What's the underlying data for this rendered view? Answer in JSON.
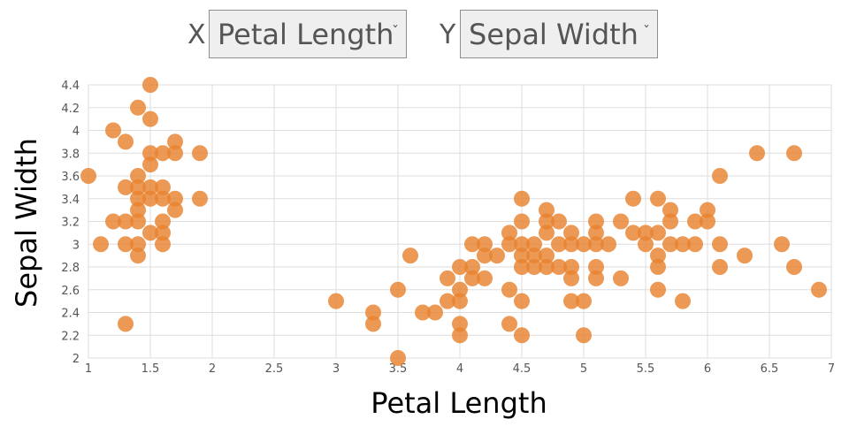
{
  "controls": {
    "x_letter": "X",
    "y_letter": "Y",
    "x_select_value": "Petal Length",
    "y_select_value": "Sepal Width",
    "chevron_icon": "chevron-down-icon"
  },
  "colors": {
    "point": "#e8822f",
    "grid": "#dddddd"
  },
  "chart_data": {
    "type": "scatter",
    "xlabel": "Petal Length",
    "ylabel": "Sepal Width",
    "xlim": [
      1,
      7
    ],
    "ylim": [
      2,
      4.4
    ],
    "xticks": [
      1,
      1.5,
      2,
      2.5,
      3,
      3.5,
      4,
      4.5,
      5,
      5.5,
      6,
      6.5,
      7
    ],
    "yticks": [
      2,
      2.2,
      2.4,
      2.6,
      2.8,
      3,
      3.2,
      3.4,
      3.6,
      3.8,
      4,
      4.2,
      4.4
    ],
    "grid": true,
    "points": [
      [
        1.0,
        3.6
      ],
      [
        1.1,
        3.0
      ],
      [
        1.2,
        4.0
      ],
      [
        1.2,
        3.2
      ],
      [
        1.3,
        3.9
      ],
      [
        1.3,
        3.5
      ],
      [
        1.3,
        3.2
      ],
      [
        1.3,
        3.0
      ],
      [
        1.3,
        2.3
      ],
      [
        1.4,
        4.2
      ],
      [
        1.4,
        3.6
      ],
      [
        1.4,
        3.5
      ],
      [
        1.4,
        3.4
      ],
      [
        1.4,
        3.3
      ],
      [
        1.4,
        3.2
      ],
      [
        1.4,
        3.0
      ],
      [
        1.4,
        2.9
      ],
      [
        1.5,
        4.4
      ],
      [
        1.5,
        4.1
      ],
      [
        1.5,
        3.8
      ],
      [
        1.5,
        3.7
      ],
      [
        1.5,
        3.5
      ],
      [
        1.5,
        3.4
      ],
      [
        1.5,
        3.1
      ],
      [
        1.6,
        3.8
      ],
      [
        1.6,
        3.5
      ],
      [
        1.6,
        3.4
      ],
      [
        1.6,
        3.2
      ],
      [
        1.6,
        3.1
      ],
      [
        1.6,
        3.0
      ],
      [
        1.7,
        3.9
      ],
      [
        1.7,
        3.8
      ],
      [
        1.7,
        3.4
      ],
      [
        1.7,
        3.3
      ],
      [
        1.9,
        3.8
      ],
      [
        1.9,
        3.4
      ],
      [
        3.0,
        2.5
      ],
      [
        3.3,
        2.4
      ],
      [
        3.3,
        2.3
      ],
      [
        3.5,
        2.6
      ],
      [
        3.5,
        2.0
      ],
      [
        3.6,
        2.9
      ],
      [
        3.7,
        2.4
      ],
      [
        3.8,
        2.4
      ],
      [
        3.9,
        2.7
      ],
      [
        3.9,
        2.5
      ],
      [
        4.0,
        2.8
      ],
      [
        4.0,
        2.6
      ],
      [
        4.0,
        2.5
      ],
      [
        4.0,
        2.3
      ],
      [
        4.0,
        2.2
      ],
      [
        4.1,
        3.0
      ],
      [
        4.1,
        2.8
      ],
      [
        4.1,
        2.7
      ],
      [
        4.2,
        3.0
      ],
      [
        4.2,
        2.9
      ],
      [
        4.2,
        2.7
      ],
      [
        4.3,
        2.9
      ],
      [
        4.4,
        3.1
      ],
      [
        4.4,
        3.0
      ],
      [
        4.4,
        2.6
      ],
      [
        4.4,
        2.3
      ],
      [
        4.5,
        3.4
      ],
      [
        4.5,
        3.2
      ],
      [
        4.5,
        3.0
      ],
      [
        4.5,
        2.9
      ],
      [
        4.5,
        2.8
      ],
      [
        4.5,
        2.5
      ],
      [
        4.5,
        2.2
      ],
      [
        4.6,
        3.0
      ],
      [
        4.6,
        2.9
      ],
      [
        4.6,
        2.8
      ],
      [
        4.7,
        3.3
      ],
      [
        4.7,
        3.2
      ],
      [
        4.7,
        3.1
      ],
      [
        4.7,
        2.9
      ],
      [
        4.7,
        2.8
      ],
      [
        4.8,
        3.2
      ],
      [
        4.8,
        3.0
      ],
      [
        4.8,
        2.8
      ],
      [
        4.9,
        3.1
      ],
      [
        4.9,
        3.0
      ],
      [
        4.9,
        2.8
      ],
      [
        4.9,
        2.7
      ],
      [
        4.9,
        2.5
      ],
      [
        5.0,
        3.0
      ],
      [
        5.0,
        2.5
      ],
      [
        5.0,
        2.2
      ],
      [
        5.1,
        3.2
      ],
      [
        5.1,
        3.1
      ],
      [
        5.1,
        3.0
      ],
      [
        5.1,
        2.8
      ],
      [
        5.1,
        2.7
      ],
      [
        5.2,
        3.0
      ],
      [
        5.3,
        3.2
      ],
      [
        5.3,
        2.7
      ],
      [
        5.4,
        3.4
      ],
      [
        5.4,
        3.1
      ],
      [
        5.5,
        3.1
      ],
      [
        5.5,
        3.0
      ],
      [
        5.6,
        3.4
      ],
      [
        5.6,
        3.1
      ],
      [
        5.6,
        2.9
      ],
      [
        5.6,
        2.8
      ],
      [
        5.6,
        2.6
      ],
      [
        5.7,
        3.3
      ],
      [
        5.7,
        3.2
      ],
      [
        5.7,
        3.0
      ],
      [
        5.8,
        3.0
      ],
      [
        5.8,
        2.5
      ],
      [
        5.9,
        3.2
      ],
      [
        5.9,
        3.0
      ],
      [
        6.0,
        3.3
      ],
      [
        6.0,
        3.2
      ],
      [
        6.1,
        3.6
      ],
      [
        6.1,
        3.0
      ],
      [
        6.1,
        2.8
      ],
      [
        6.3,
        2.9
      ],
      [
        6.4,
        3.8
      ],
      [
        6.6,
        3.0
      ],
      [
        6.7,
        3.8
      ],
      [
        6.7,
        2.8
      ],
      [
        6.9,
        2.6
      ]
    ]
  }
}
